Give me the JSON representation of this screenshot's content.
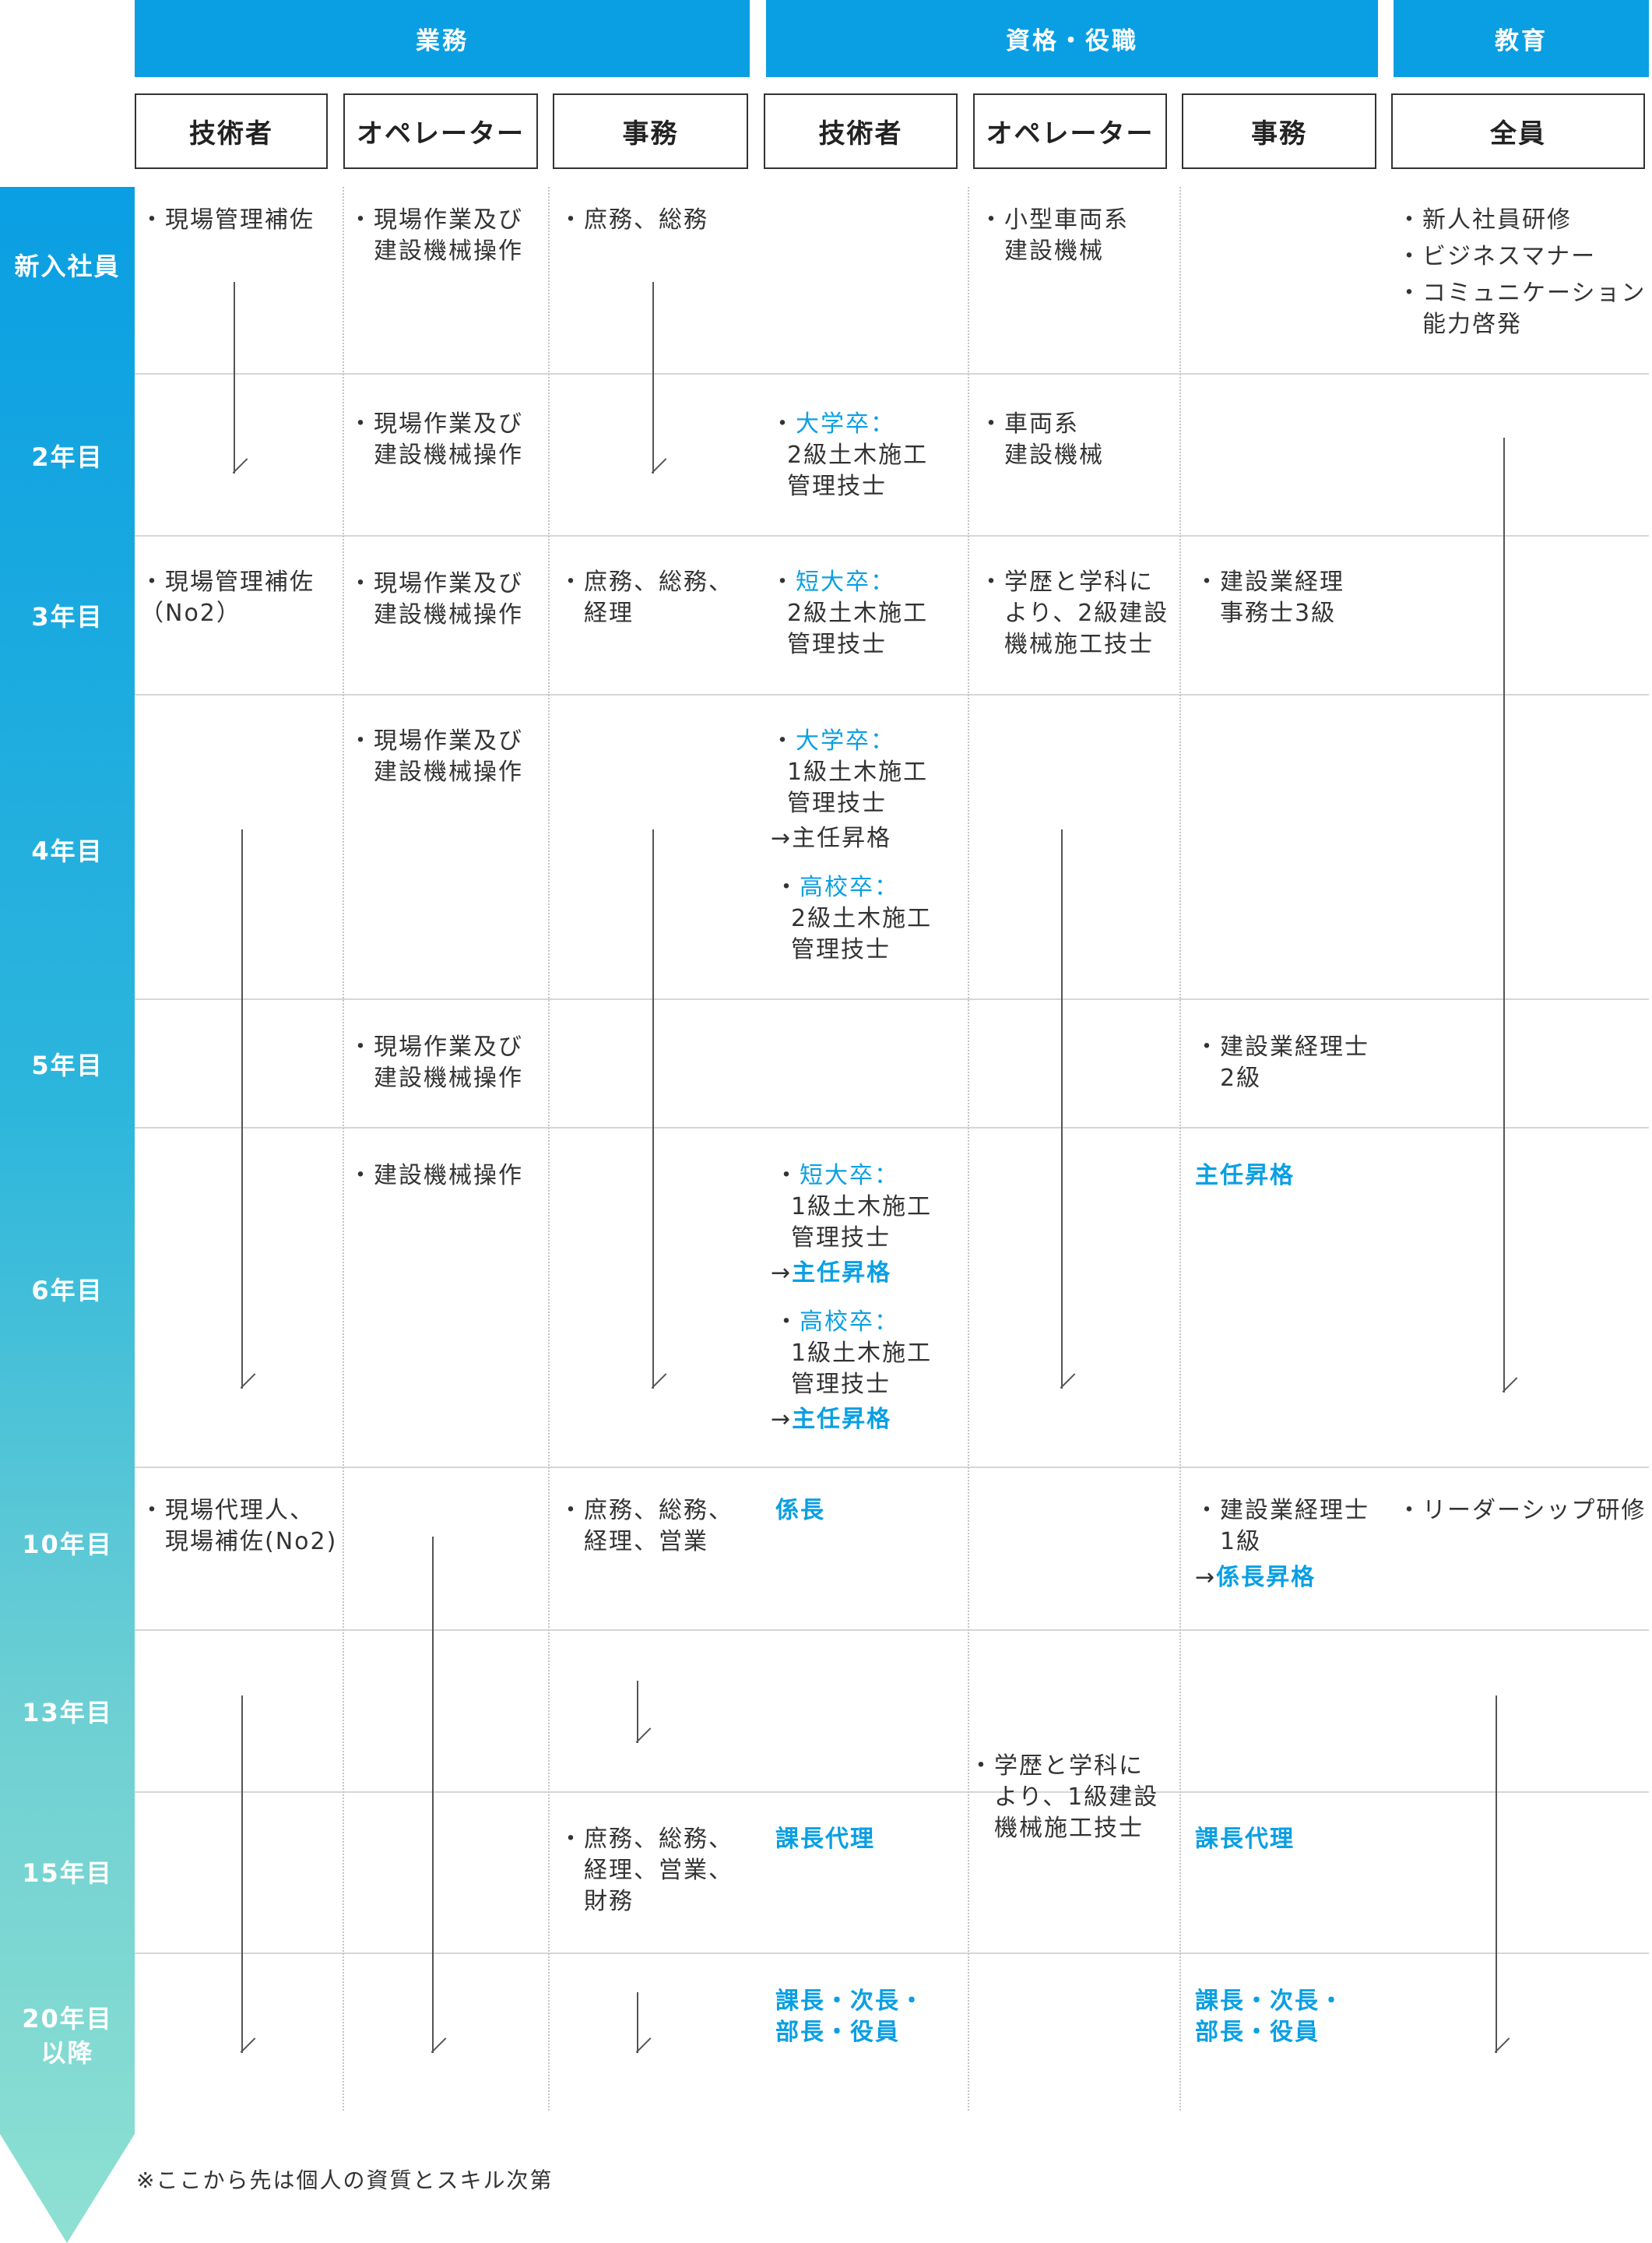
{
  "groups": {
    "business": "業務",
    "qualification": "資格・役職",
    "education": "教育"
  },
  "roles": {
    "business_engineer": "技術者",
    "business_operator": "オペレーター",
    "business_office": "事務",
    "qual_engineer": "技術者",
    "qual_operator": "オペレーター",
    "qual_office": "事務",
    "edu_all": "全員"
  },
  "years": {
    "y1": "新入社員",
    "y2": "2年目",
    "y3": "3年目",
    "y4": "4年目",
    "y5": "5年目",
    "y6": "6年目",
    "y10": "10年目",
    "y13": "13年目",
    "y15": "15年目",
    "y20a": "20年目",
    "y20b": "以降"
  },
  "cells": {
    "r1": {
      "eng": "・現場管理補佐",
      "ope": "・現場作業及び\n　建設機械操作",
      "off": "・庶務、総務",
      "qope": "・小型車両系\n　建設機械",
      "edu1": "・新人社員研修",
      "edu2": "・ビジネスマナー",
      "edu3": "・コミュニケーション\n　能力啓発"
    },
    "r2": {
      "ope": "・現場作業及び\n　建設機械操作",
      "qeng_label": "大学卒：",
      "qeng_body": "2級土木施工\n管理技士",
      "qope": "・車両系\n　建設機械"
    },
    "r3": {
      "eng": "・現場管理補佐\n（No2）",
      "ope": "・現場作業及び\n　建設機械操作",
      "off": "・庶務、総務、\n　経理",
      "qeng_label": "短大卒：",
      "qeng_body": "2級土木施工\n管理技士",
      "qope": "・学歴と学科に\n　より、2級建設\n　機械施工技士",
      "qoff": "・建設業経理\n　事務士3級"
    },
    "r4": {
      "ope": "・現場作業及び\n　建設機械操作",
      "qeng1_label": "大学卒：",
      "qeng1_body": "1級土木施工\n管理技士",
      "qeng1_promo": "→主任昇格",
      "qeng2_label": "高校卒：",
      "qeng2_body": "2級土木施工\n管理技士"
    },
    "r5": {
      "ope": "・現場作業及び\n　建設機械操作",
      "qoff": "・建設業経理士\n　2級"
    },
    "r6": {
      "ope": "・建設機械操作",
      "qeng1_label": "短大卒：",
      "qeng1_body": "1級土木施工\n管理技士",
      "qeng1_promo": "主任昇格",
      "qeng2_label": "高校卒：",
      "qeng2_body": "1級土木施工\n管理技士",
      "qeng2_promo": "主任昇格",
      "qoff": "主任昇格"
    },
    "r10": {
      "eng": "・現場代理人、\n　現場補佐(No2)",
      "off": "・庶務、総務、\n　経理、営業",
      "qeng": "係長",
      "qoff": "・建設業経理士\n　1級",
      "qoff_promo": "係長昇格",
      "edu": "・リーダーシップ研修"
    },
    "r13": {
      "qope": "・学歴と学科に\n　より、1級建設\n　機械施工技士"
    },
    "r15": {
      "off": "・庶務、総務、\n　経理、営業、\n　財務",
      "qeng": "課長代理",
      "qoff": "課長代理"
    },
    "r20": {
      "qeng": "課長・次長・\n部長・役員",
      "qoff": "課長・次長・\n部長・役員"
    }
  },
  "bullet": "・",
  "arrow_prefix": "→",
  "footnote": "※ここから先は個人の資質とスキル次第",
  "colors": {
    "accent": "#0a9fe3",
    "timeline_end": "#8ee0d2",
    "text": "#333333"
  }
}
